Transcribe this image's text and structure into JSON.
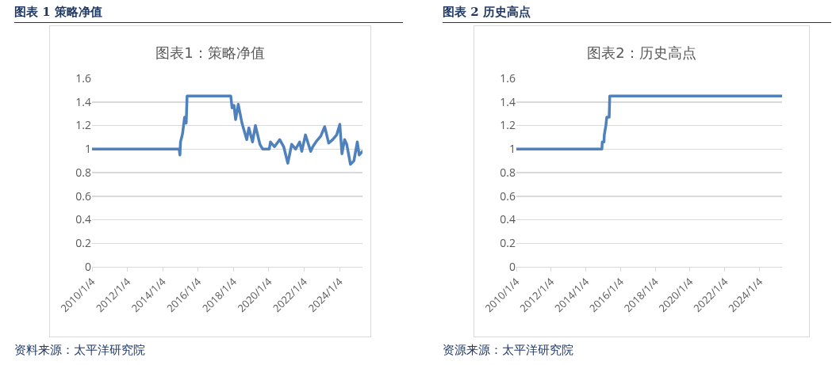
{
  "chart_data": [
    {
      "type": "line",
      "title": "图表1：策略净值",
      "annotations": [
        "图表 1 策略净值",
        "资料来源：太平洋研究院"
      ],
      "x": [
        "2010-01-04",
        "2014-12-08",
        "2014-12-25",
        "2015-01-06",
        "2015-02-17",
        "2015-03-10",
        "2015-04-01",
        "2015-05-04",
        "2015-05-22",
        "2017-11-10",
        "2017-12-06",
        "2018-01-15",
        "2018-02-17",
        "2018-04-13",
        "2018-06-29",
        "2018-10-05",
        "2018-11-18",
        "2019-02-02",
        "2019-04-02",
        "2019-07-05",
        "2019-08-29",
        "2020-01-13",
        "2020-02-08",
        "2020-05-01",
        "2020-06-24",
        "2020-08-17",
        "2020-11-07",
        "2021-01-30",
        "2021-04-20",
        "2021-07-12",
        "2021-10-02",
        "2021-11-15",
        "2022-01-30",
        "2022-03-25",
        "2022-05-18",
        "2022-07-01",
        "2022-09-21",
        "2022-12-13",
        "2023-03-03",
        "2023-05-26",
        "2023-08-15",
        "2023-11-05",
        "2024-01-10",
        "2024-02-23",
        "2024-04-18",
        "2024-06-01",
        "2024-08-17",
        "2024-10-27",
        "2025-01-05",
        "2025-02-13",
        "2025-04-22"
      ],
      "series": [
        {
          "color": "#4f81bd",
          "values": [
            1,
            1,
            0.95,
            1.06,
            1.13,
            1.2,
            1.27,
            1.22,
            1.45,
            1.45,
            1.35,
            1.37,
            1.25,
            1.38,
            1.22,
            1.08,
            1.18,
            1.06,
            1.2,
            1.04,
            1,
            1,
            1.06,
            1.02,
            1.05,
            1.08,
            1.02,
            0.88,
            1.04,
            1,
            1.06,
            0.98,
            1.12,
            1.05,
            0.98,
            1.02,
            1.07,
            1.11,
            1.19,
            1.05,
            1.08,
            1.12,
            1.21,
            0.96,
            1.08,
            1.04,
            0.87,
            0.9,
            1.06,
            0.95,
            0.98
          ]
        }
      ],
      "xlim": [
        "2010-01-04",
        "2025-04-22"
      ],
      "xticks": [
        {
          "value": "2010-01-04",
          "label": "2010/1/4"
        },
        {
          "value": "2012-01-04",
          "label": "2012/1/4"
        },
        {
          "value": "2014-01-04",
          "label": "2014/1/4"
        },
        {
          "value": "2016-01-04",
          "label": "2016/1/4"
        },
        {
          "value": "2018-01-04",
          "label": "2018/1/4"
        },
        {
          "value": "2020-01-04",
          "label": "2020/1/4"
        },
        {
          "value": "2022-01-04",
          "label": "2022/1/4"
        },
        {
          "value": "2024-01-04",
          "label": "2024/1/4"
        }
      ],
      "ylim": [
        0,
        1.6
      ],
      "yticks": [
        0,
        0.2,
        0.4,
        0.6,
        0.8,
        1,
        1.2,
        1.4,
        1.6
      ],
      "grid": "y",
      "line_style": "solid"
    },
    {
      "type": "line",
      "title": "图表2：历史高点",
      "annotations": [
        "图表 2 历史高点",
        "资源来源：太平洋研究院"
      ],
      "x": [
        "2010-01-04",
        "2014-12-08",
        "2014-12-15",
        "2015-01-20",
        "2015-01-27",
        "2015-03-01",
        "2015-03-20",
        "2015-05-10",
        "2015-05-22",
        "2025-04-22"
      ],
      "series": [
        {
          "color": "#4f81bd",
          "values": [
            1,
            1,
            1.06,
            1.06,
            1.12,
            1.2,
            1.27,
            1.27,
            1.45,
            1.45
          ]
        }
      ],
      "xlim": [
        "2010-01-04",
        "2025-04-22"
      ],
      "xticks": [
        {
          "value": "2010-01-04",
          "label": "2010/1/4"
        },
        {
          "value": "2012-01-04",
          "label": "2012/1/4"
        },
        {
          "value": "2014-01-04",
          "label": "2014/1/4"
        },
        {
          "value": "2016-01-04",
          "label": "2016/1/4"
        },
        {
          "value": "2018-01-04",
          "label": "2018/1/4"
        },
        {
          "value": "2020-01-04",
          "label": "2020/1/4"
        },
        {
          "value": "2022-01-04",
          "label": "2022/1/4"
        },
        {
          "value": "2024-01-04",
          "label": "2024/1/4"
        }
      ],
      "ylim": [
        0,
        1.6
      ],
      "yticks": [
        0,
        0.2,
        0.4,
        0.6,
        0.8,
        1,
        1.2,
        1.4,
        1.6
      ],
      "grid": "y",
      "line_style": "solid"
    }
  ]
}
